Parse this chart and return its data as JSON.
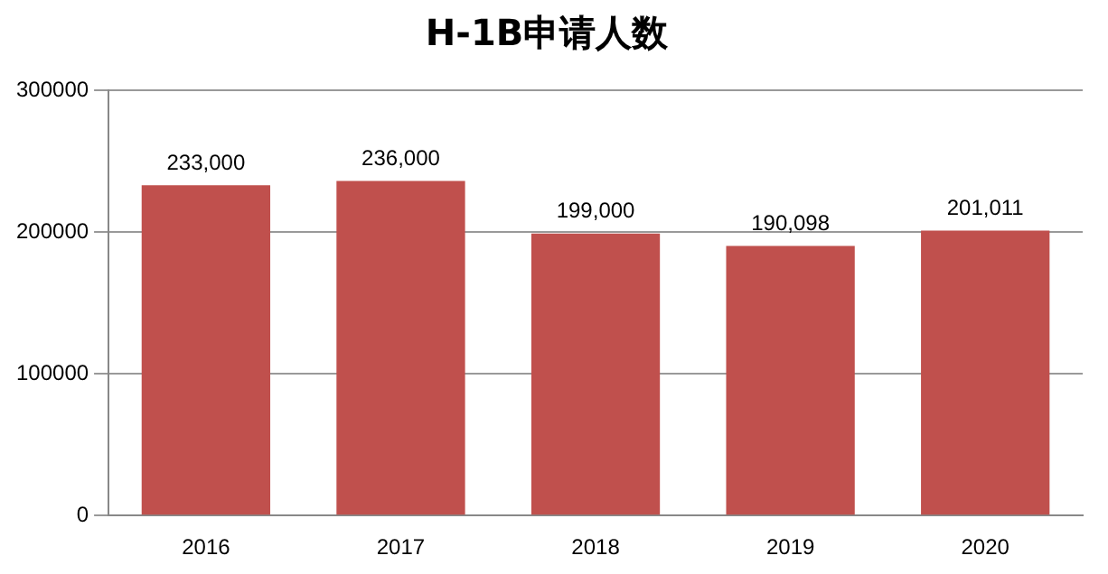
{
  "chart_data": {
    "type": "bar",
    "title": "H-1B申请人数",
    "categories": [
      "2016",
      "2017",
      "2018",
      "2019",
      "2020"
    ],
    "values": [
      233000,
      236000,
      199000,
      190098,
      201011
    ],
    "value_labels": [
      "233,000",
      "236,000",
      "199,000",
      "190,098",
      "201,011"
    ],
    "color": "#c0504d",
    "ylim": [
      0,
      300000
    ],
    "yticks": [
      0,
      100000,
      200000,
      300000
    ],
    "grid": "y"
  }
}
